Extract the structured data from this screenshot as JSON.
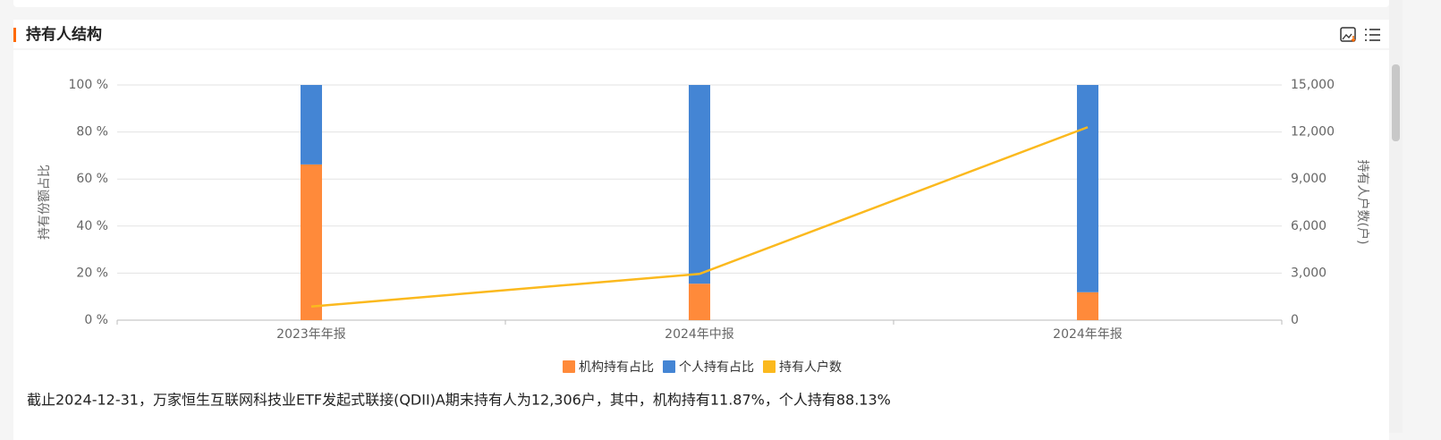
{
  "section": {
    "title": "持有人结构"
  },
  "chart_data": {
    "type": "bar",
    "stacked": true,
    "categories": [
      "2023年年报",
      "2024年中报",
      "2024年年报"
    ],
    "series": [
      {
        "name": "机构持有占比",
        "color": "#ff8a3a",
        "values": [
          66.2,
          15.5,
          11.87
        ]
      },
      {
        "name": "个人持有占比",
        "color": "#4485d4",
        "values": [
          33.8,
          84.5,
          88.13
        ]
      },
      {
        "name": "持有人户数",
        "color": "#fbb91e",
        "type": "line",
        "axis": "y2",
        "values": [
          870,
          2950,
          12306
        ]
      }
    ],
    "ylabel": "持有份额占比",
    "y2label": "持有人户数(户)",
    "ylim": [
      0,
      100
    ],
    "yticks": [
      {
        "value": 0,
        "label": "0 %"
      },
      {
        "value": 20,
        "label": "20 %"
      },
      {
        "value": 40,
        "label": "40 %"
      },
      {
        "value": 60,
        "label": "60 %"
      },
      {
        "value": 80,
        "label": "80 %"
      },
      {
        "value": 100,
        "label": "100 %"
      }
    ],
    "y2lim": [
      0,
      15000
    ],
    "y2ticks": [
      0,
      {
        "value": 3000,
        "label": "3,000"
      },
      {
        "value": 6000,
        "label": "6,000"
      },
      {
        "value": 9000,
        "label": "9,000"
      },
      {
        "value": 12000,
        "label": "12,000"
      },
      {
        "value": 15000,
        "label": "15,000"
      }
    ],
    "grid": true,
    "legend": "bottom"
  },
  "summary": "截止2024-12-31，万家恒生互联网科技业ETF发起式联接(QDII)A期末持有人为12,306户，其中，机构持有11.87%，个人持有88.13%"
}
